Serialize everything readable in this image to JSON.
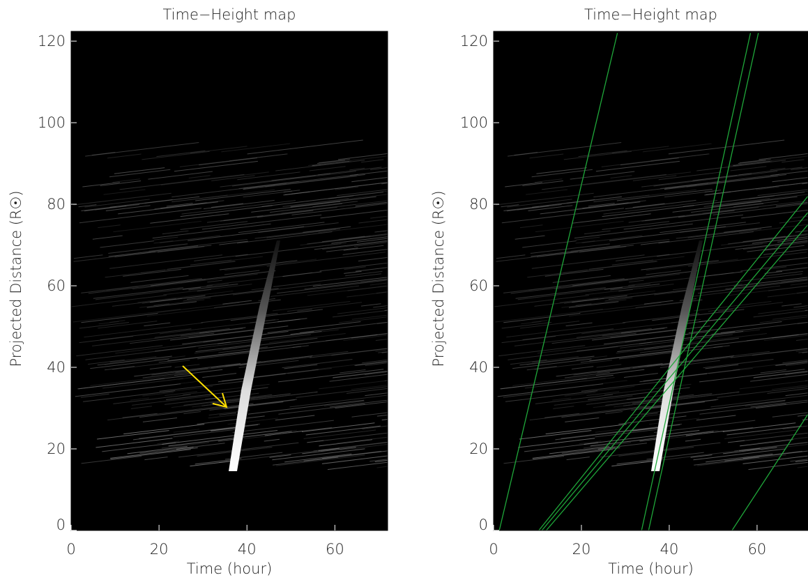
{
  "chart_data": [
    {
      "type": "image",
      "title": "Time−Height map",
      "xlabel": "Time (hour)",
      "ylabel": "Projected Distance (R☉)",
      "xlim": [
        0,
        72
      ],
      "ylim": [
        0,
        122.4
      ],
      "xticks": [
        0,
        20,
        40,
        60
      ],
      "yticks": [
        0,
        20,
        40,
        60,
        80,
        100,
        120
      ]
    },
    {
      "type": "image",
      "title": "Time−Height map",
      "xlabel": "Time (hour)",
      "ylabel": "Projected Distance (R☉)",
      "xlim": [
        0,
        71.6
      ],
      "ylim": [
        0,
        122.4
      ],
      "xticks": [
        0,
        20,
        40,
        60
      ],
      "yticks": [
        0,
        20,
        40,
        60,
        80,
        100,
        120
      ],
      "series": [
        {
          "color": "#1fa83a",
          "x": [
            1.3,
            28.2
          ],
          "y": [
            0,
            122
          ]
        },
        {
          "color": "#1fa83a",
          "x": [
            10.3,
            71.6
          ],
          "y": [
            0,
            82
          ]
        },
        {
          "color": "#1fa83a",
          "x": [
            11,
            71.6
          ],
          "y": [
            0,
            78
          ]
        },
        {
          "color": "#1fa83a",
          "x": [
            12,
            71.6
          ],
          "y": [
            0,
            75
          ]
        },
        {
          "color": "#1fa83a",
          "x": [
            33.7,
            58.5
          ],
          "y": [
            0,
            122
          ]
        },
        {
          "color": "#1fa83a",
          "x": [
            35.3,
            60.3
          ],
          "y": [
            0,
            122
          ]
        },
        {
          "color": "#1fa83a",
          "x": [
            54.3,
            71.6
          ],
          "y": [
            0,
            28.5
          ]
        }
      ]
    }
  ]
}
